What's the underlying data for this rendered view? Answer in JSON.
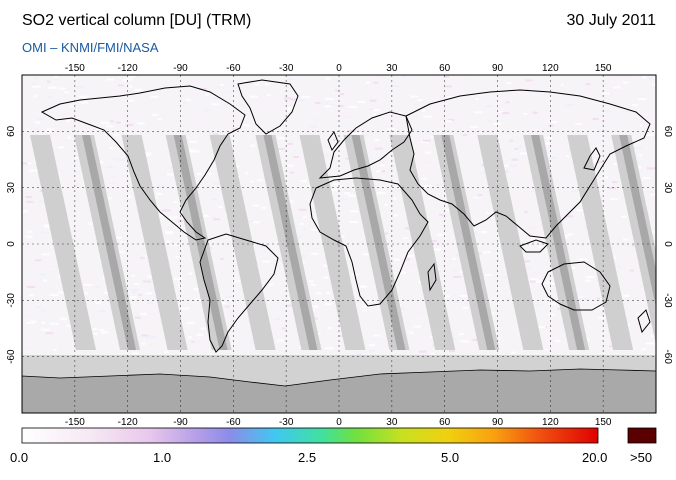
{
  "header": {
    "title": "SO2 vertical column [DU] (TRM)",
    "date": "30 July 2011",
    "subtitle": "OMI  –  KNMI/FMI/NASA"
  },
  "map": {
    "lon_ticks": [
      "-150",
      "-120",
      "-90",
      "-60",
      "-30",
      "0",
      "30",
      "60",
      "90",
      "120",
      "150"
    ],
    "lat_ticks": [
      "60",
      "30",
      "0",
      "-30",
      "-60"
    ],
    "colors": {
      "swath_gap": "#cfcfcf",
      "swath_dark": "#a8a8a8",
      "coast": "#000000",
      "grid": "#000000",
      "antarctica": "#a9a9a9",
      "polar_band": "#d2d2d2"
    }
  },
  "colorbar": {
    "labels": [
      "0.0",
      "1.0",
      "2.5",
      "5.0",
      "20.0"
    ],
    "overflow_label": ">50",
    "overflow_color": "#5a0000"
  }
}
